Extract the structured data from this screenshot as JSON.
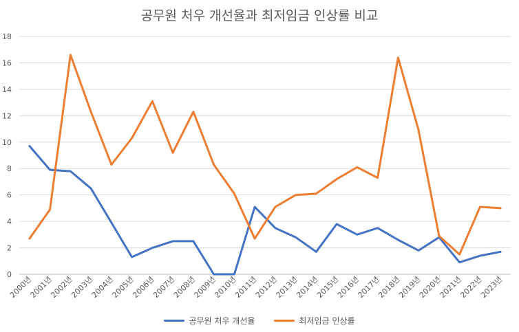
{
  "chart_data": {
    "type": "line",
    "title": "공무원 처우 개선율과 최저임금 인상률 비교",
    "xlabel": "",
    "ylabel": "",
    "ylim": [
      0,
      18
    ],
    "yticks": [
      0,
      2,
      4,
      6,
      8,
      10,
      12,
      14,
      16,
      18
    ],
    "grid": true,
    "legend_position": "bottom",
    "categories": [
      "2000년",
      "2001년",
      "2002년",
      "2003년",
      "2004년",
      "2005년",
      "2006년",
      "2007년",
      "2008년",
      "2009년",
      "2010년",
      "2011년",
      "2012년",
      "2013년",
      "2014년",
      "2015년",
      "2016년",
      "2017년",
      "2018년",
      "2019년",
      "2020년",
      "2021년",
      "2022년",
      "2023년"
    ],
    "series": [
      {
        "name": "공무원 처우 개선율",
        "color": "#4472c4",
        "values": [
          9.7,
          7.9,
          7.8,
          6.5,
          3.9,
          1.3,
          2.0,
          2.5,
          2.5,
          0,
          0,
          5.1,
          3.5,
          2.8,
          1.7,
          3.8,
          3.0,
          3.5,
          2.6,
          1.8,
          2.8,
          0.9,
          1.4,
          1.7
        ]
      },
      {
        "name": "최저임금 인상률",
        "color": "#ed7d31",
        "values": [
          2.7,
          4.9,
          16.6,
          12.3,
          8.3,
          10.3,
          13.1,
          9.2,
          12.3,
          8.3,
          6.1,
          2.7,
          5.1,
          6.0,
          6.1,
          7.2,
          8.1,
          7.3,
          16.4,
          10.9,
          2.9,
          1.5,
          5.1,
          5.0
        ]
      }
    ]
  }
}
